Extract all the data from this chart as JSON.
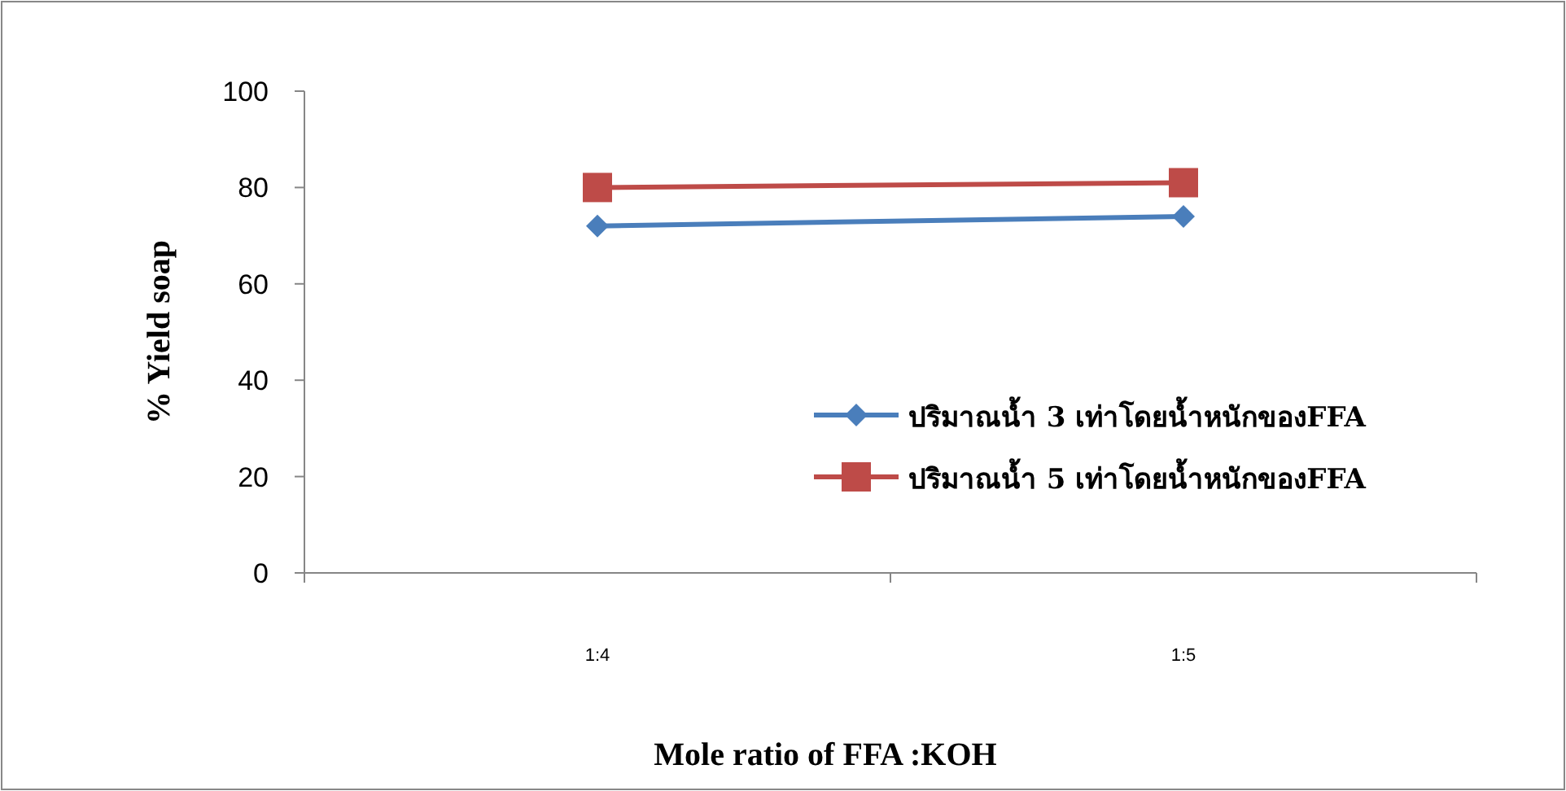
{
  "chart_data": {
    "type": "line",
    "xlabel": "Mole ratio of FFA :KOH",
    "ylabel": "% Yield soap",
    "categories": [
      "1:4",
      "1:5"
    ],
    "ylim": [
      0,
      100
    ],
    "yticks": [
      0,
      20,
      40,
      60,
      80,
      100
    ],
    "grid": false,
    "legend": "right",
    "series": [
      {
        "name": "ปริมาณน้ำ 3 เท่าโดยน้ำหนักของFFA",
        "color": "#4a7ebb",
        "marker": "diamond",
        "values": [
          72,
          74
        ]
      },
      {
        "name": "ปริมาณน้ำ 5 เท่าโดยน้ำหนักของFFA",
        "color": "#be4b48",
        "marker": "square",
        "values": [
          80,
          81
        ]
      }
    ]
  }
}
